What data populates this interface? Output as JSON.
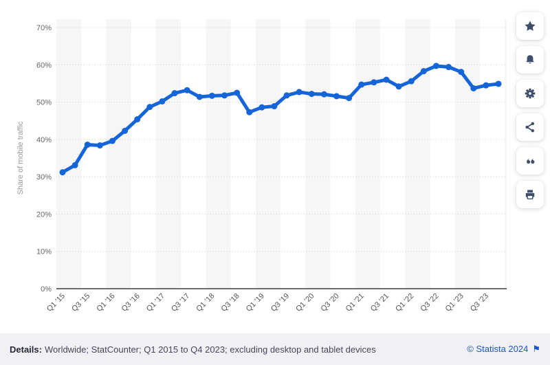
{
  "footer": {
    "details_label": "Details:",
    "details_text": "Worldwide; StatCounter; Q1 2015 to Q4 2023; excluding desktop and tablet devices",
    "copyright": "© Statista 2024"
  },
  "sidebar": {
    "buttons": [
      {
        "name": "favorite",
        "icon": "star-icon"
      },
      {
        "name": "alert",
        "icon": "bell-icon"
      },
      {
        "name": "settings",
        "icon": "gear-icon"
      },
      {
        "name": "share",
        "icon": "share-icon"
      },
      {
        "name": "cite",
        "icon": "quote-icon"
      },
      {
        "name": "print",
        "icon": "printer-icon"
      }
    ]
  },
  "chart_data": {
    "type": "line",
    "title": "",
    "ylabel": "Share of mobile traffic",
    "xlabel": "",
    "ylim": [
      0,
      70
    ],
    "yticks": [
      0,
      10,
      20,
      30,
      40,
      50,
      60,
      70
    ],
    "ytick_labels": [
      "0%",
      "10%",
      "20%",
      "30%",
      "40%",
      "50%",
      "60%",
      "70%"
    ],
    "grid": "horizontal-dotted",
    "legend": "none",
    "line_color": "#1565d8",
    "band_color": "#f6f6f6",
    "categories": [
      "Q1 '15",
      "Q2 '15",
      "Q3 '15",
      "Q4 '15",
      "Q1 '16",
      "Q2 '16",
      "Q3 '16",
      "Q4 '16",
      "Q1 '17",
      "Q2 '17",
      "Q3 '17",
      "Q4 '17",
      "Q1 '18",
      "Q2 '18",
      "Q3 '18",
      "Q4 '18",
      "Q1 '19",
      "Q2 '19",
      "Q3 '19",
      "Q4 '19",
      "Q1 '20",
      "Q2 '20",
      "Q3 '20",
      "Q4 '20",
      "Q1 '21",
      "Q2 '21",
      "Q3 '21",
      "Q4 '21",
      "Q1 '22",
      "Q2 '22",
      "Q3 '22",
      "Q4 '22",
      "Q1 '23",
      "Q2 '23",
      "Q3 '23",
      "Q4 '23"
    ],
    "xtick_labels": [
      "Q1 '15",
      "Q3 '15",
      "Q1 '16",
      "Q3 '16",
      "Q1 '17",
      "Q3 '17",
      "Q1 '18",
      "Q3 '18",
      "Q1 '19",
      "Q3 '19",
      "Q1 '20",
      "Q3 '20",
      "Q1 '21",
      "Q3 '21",
      "Q1 '22",
      "Q3 '22",
      "Q1 '23",
      "Q3 '23"
    ],
    "series": [
      {
        "name": "Share of mobile traffic",
        "unit": "%",
        "values": [
          31.2,
          33.1,
          38.6,
          38.4,
          39.6,
          42.3,
          45.4,
          48.7,
          50.2,
          52.4,
          53.2,
          51.4,
          51.7,
          51.8,
          52.5,
          47.3,
          48.6,
          48.9,
          51.8,
          52.7,
          52.2,
          52.1,
          51.6,
          51.1,
          54.7,
          55.3,
          56.0,
          54.2,
          55.6,
          58.3,
          59.7,
          59.4,
          58.1,
          53.7,
          54.5,
          54.9
        ]
      }
    ]
  }
}
